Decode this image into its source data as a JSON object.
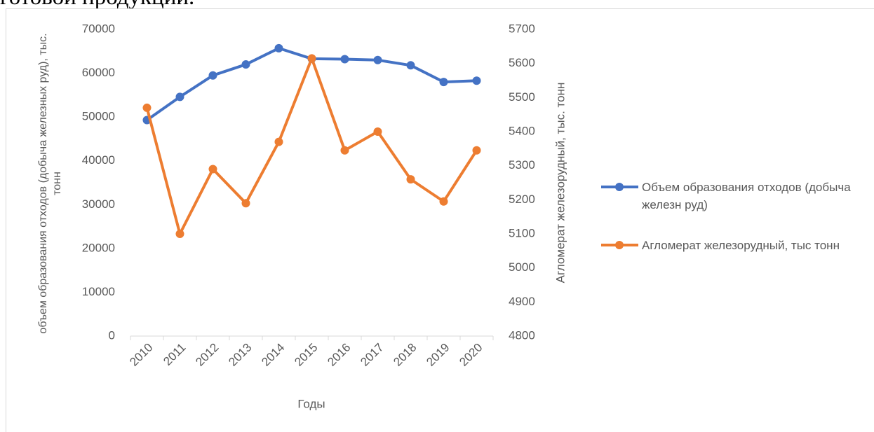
{
  "header": {
    "text": "готовой продукции."
  },
  "chart_data": {
    "type": "line",
    "x_label": "Годы",
    "y_label": "объем образования отходов (добыча железных руд), тыс. тонн",
    "y2_label": "Агломерат железорудный, тыс. тонн",
    "categories": [
      "2010",
      "2011",
      "2012",
      "2013",
      "2014",
      "2015",
      "2016",
      "2017",
      "2018",
      "2019",
      "2020"
    ],
    "series": [
      {
        "name": "Объем образования отходов (добыча железн руд)",
        "color": "#4472c4",
        "values": [
          49300,
          54600,
          59500,
          62000,
          65700,
          63300,
          63200,
          63000,
          61800,
          58000,
          58300
        ]
      },
      {
        "name": "Агломерат железорудный, тыс тонн",
        "color": "#ed7d31",
        "axis": "y2",
        "values": [
          5470,
          5100,
          5290,
          5190,
          5370,
          5615,
          5345,
          5400,
          5260,
          5195,
          5345
        ]
      }
    ],
    "ylim": [
      0,
      70000
    ],
    "yticks": [
      0,
      10000,
      20000,
      30000,
      40000,
      50000,
      60000,
      70000
    ],
    "y2lim": [
      4800,
      5700
    ],
    "y2ticks": [
      4800,
      4900,
      5000,
      5100,
      5200,
      5300,
      5400,
      5500,
      5600,
      5700
    ],
    "grid": false,
    "legend": "right"
  }
}
